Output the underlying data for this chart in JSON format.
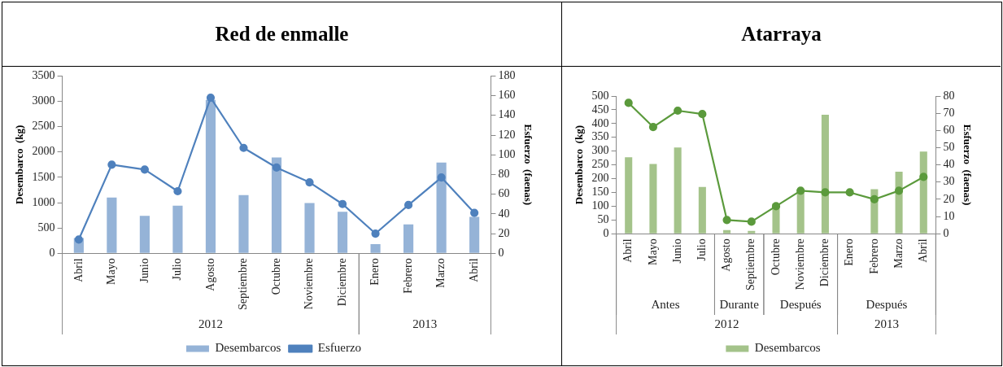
{
  "chart_data": [
    {
      "type": "bar",
      "title": "Red de enmalle",
      "ylabel": "Desembarco  (kg)",
      "y2label": "Esfuerzo  (faenas)",
      "categories": [
        "Abril",
        "Mayo",
        "Junio",
        "Julio",
        "Agosto",
        "Septiembre",
        "Octubre",
        "Noviembre",
        "Diciembre",
        "Enero",
        "Febrero",
        "Marzo",
        "Abril"
      ],
      "series": [
        {
          "name": "Desembarcos",
          "color": "#95b3d7",
          "values": [
            300,
            1100,
            740,
            940,
            3030,
            1150,
            1890,
            990,
            820,
            180,
            570,
            1790,
            720
          ]
        },
        {
          "name": "Esfuerzo",
          "type": "line",
          "axis": "y2",
          "color": "#4f81bd",
          "values": [
            14,
            90,
            85,
            63,
            158,
            107,
            87,
            72,
            50,
            20,
            49,
            77,
            41
          ]
        }
      ],
      "ylim": [
        0,
        3500
      ],
      "yticks": [
        0,
        500,
        1000,
        1500,
        2000,
        2500,
        3000,
        3500
      ],
      "y2lim": [
        0,
        180
      ],
      "y2ticks": [
        0,
        20,
        40,
        60,
        80,
        100,
        120,
        140,
        160,
        180
      ],
      "annotations": [
        "2012",
        "2013"
      ],
      "grid": false,
      "legend": "bottom",
      "marker": "circle",
      "line_style": "solid"
    },
    {
      "type": "bar",
      "title": "Atarraya",
      "ylabel": "Desembarco  (kg)",
      "y2label": "Esfuerzo  (faenas)",
      "categories": [
        "Abril",
        "Mayo",
        "Junio",
        "Julio",
        "Agosto",
        "Septiembre",
        "Octubre",
        "Noviembre",
        "Diciembre",
        "Enero",
        "Febrero",
        "Marzo",
        "Abril"
      ],
      "series": [
        {
          "name": "Desembarcos",
          "color": "#a4c38a",
          "values": [
            278,
            253,
            313,
            170,
            13,
            10,
            110,
            160,
            432,
            null,
            162,
            225,
            298
          ]
        },
        {
          "type": "line",
          "axis": "y2",
          "color": "#5b9a3c",
          "values": [
            76,
            62,
            71.5,
            69.5,
            8,
            7,
            16,
            25,
            24,
            24,
            20,
            25,
            33
          ]
        }
      ],
      "ylim": [
        0,
        500
      ],
      "yticks": [
        0,
        50,
        100,
        150,
        200,
        250,
        300,
        350,
        400,
        450,
        500
      ],
      "y2lim": [
        0,
        80
      ],
      "y2ticks": [
        0,
        10,
        20,
        30,
        40,
        50,
        60,
        70,
        80
      ],
      "annotations": [
        "Antes",
        "Durante",
        "Después",
        "Después",
        "2012",
        "2013"
      ],
      "grid": false,
      "legend": "bottom",
      "marker": "circle",
      "line_style": "solid"
    }
  ]
}
